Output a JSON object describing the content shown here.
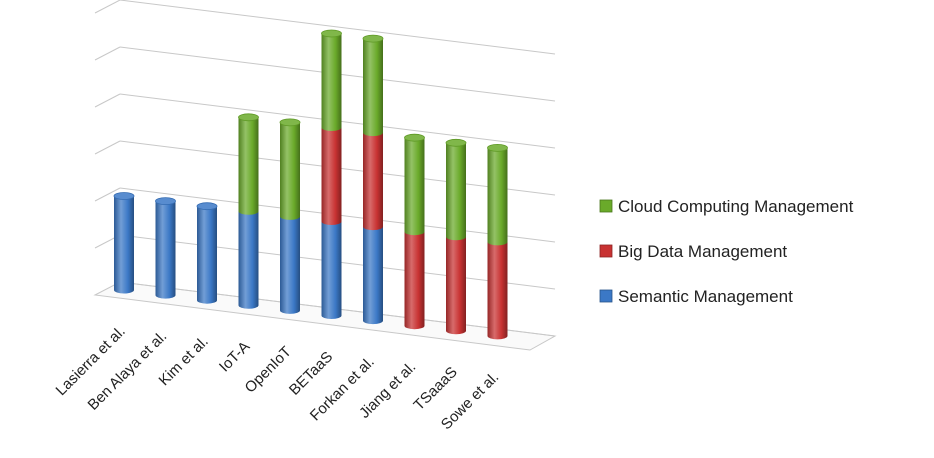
{
  "chart_data": {
    "type": "bar",
    "stacked": true,
    "style": "3d-cylinder",
    "categories": [
      "Lasierra et al.",
      "Ben Alaya et al.",
      "Kim et al.",
      "IoT-A",
      "OpenIoT",
      "BETaaS",
      "Forkan et al.",
      "Jiang et al.",
      "TSaaaS",
      "Sowe et al."
    ],
    "series": [
      {
        "name": "Semantic Management",
        "color": "#3b78c6",
        "values": [
          2,
          2,
          2,
          2,
          2,
          2,
          2,
          0,
          0,
          0
        ]
      },
      {
        "name": "Big Data Management",
        "color": "#c83232",
        "values": [
          0,
          0,
          0,
          0,
          0,
          2,
          2,
          2,
          2,
          2
        ]
      },
      {
        "name": "Cloud Computing Management",
        "color": "#6aaa2a",
        "values": [
          0,
          0,
          0,
          2,
          2,
          2,
          2,
          2,
          2,
          2
        ]
      }
    ],
    "ylim": [
      0,
      6
    ],
    "grid": true,
    "legend": "right",
    "legend_order": [
      "Cloud Computing Management",
      "Big Data Management",
      "Semantic Management"
    ],
    "title": "",
    "xlabel": "",
    "ylabel": ""
  }
}
